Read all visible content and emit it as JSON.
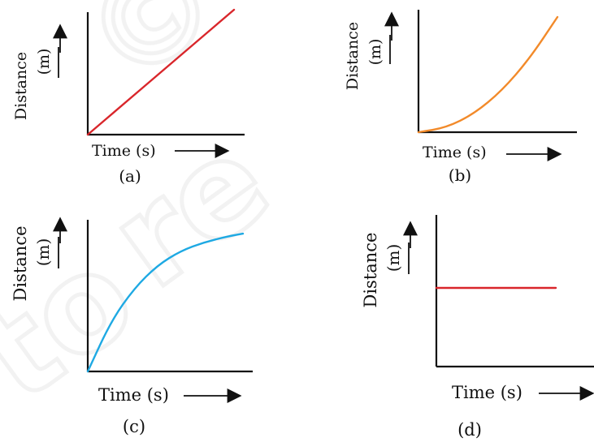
{
  "figure_watermark": "© NCERT not to be republished",
  "colors": {
    "axis": "#111111",
    "a": "#d9262b",
    "b": "#f28a2a",
    "c": "#1ea9e3",
    "d": "#d9262b"
  },
  "chart_data": [
    {
      "type": "line",
      "id": "a",
      "panel_label": "(a)",
      "xlabel": "Time (s)",
      "ylabel_main": "Distance",
      "ylabel_unit": "(m)",
      "curve_shape": "straight line through origin",
      "series": [
        {
          "color": "#d9262b",
          "x": [
            0,
            0.25,
            0.5,
            0.75,
            1.0
          ],
          "y": [
            0,
            0.25,
            0.5,
            0.75,
            1.0
          ]
        }
      ]
    },
    {
      "type": "line",
      "id": "b",
      "panel_label": "(b)",
      "xlabel": "Time (s)",
      "ylabel_main": "Distance",
      "ylabel_unit": "(m)",
      "curve_shape": "concave up curve through origin",
      "series": [
        {
          "color": "#f28a2a",
          "x": [
            0,
            0.2,
            0.4,
            0.6,
            0.8,
            1.0
          ],
          "y": [
            0,
            0.04,
            0.16,
            0.36,
            0.64,
            1.0
          ]
        }
      ]
    },
    {
      "type": "line",
      "id": "c",
      "panel_label": "(c)",
      "xlabel": "Time (s)",
      "ylabel_main": "Distance",
      "ylabel_unit": "(m)",
      "curve_shape": "concave down curve approaching a maximum",
      "series": [
        {
          "color": "#1ea9e3",
          "x": [
            0,
            0.15,
            0.3,
            0.45,
            0.6,
            0.75,
            0.9,
            1.0
          ],
          "y": [
            0,
            0.35,
            0.58,
            0.74,
            0.84,
            0.9,
            0.94,
            0.96
          ]
        }
      ]
    },
    {
      "type": "line",
      "id": "d",
      "panel_label": "(d)",
      "xlabel": "Time (s)",
      "ylabel_main": "Distance",
      "ylabel_unit": "(m)",
      "curve_shape": "horizontal line",
      "series": [
        {
          "color": "#d9262b",
          "x": [
            0,
            1.0
          ],
          "y": [
            0.5,
            0.5
          ]
        }
      ]
    }
  ]
}
